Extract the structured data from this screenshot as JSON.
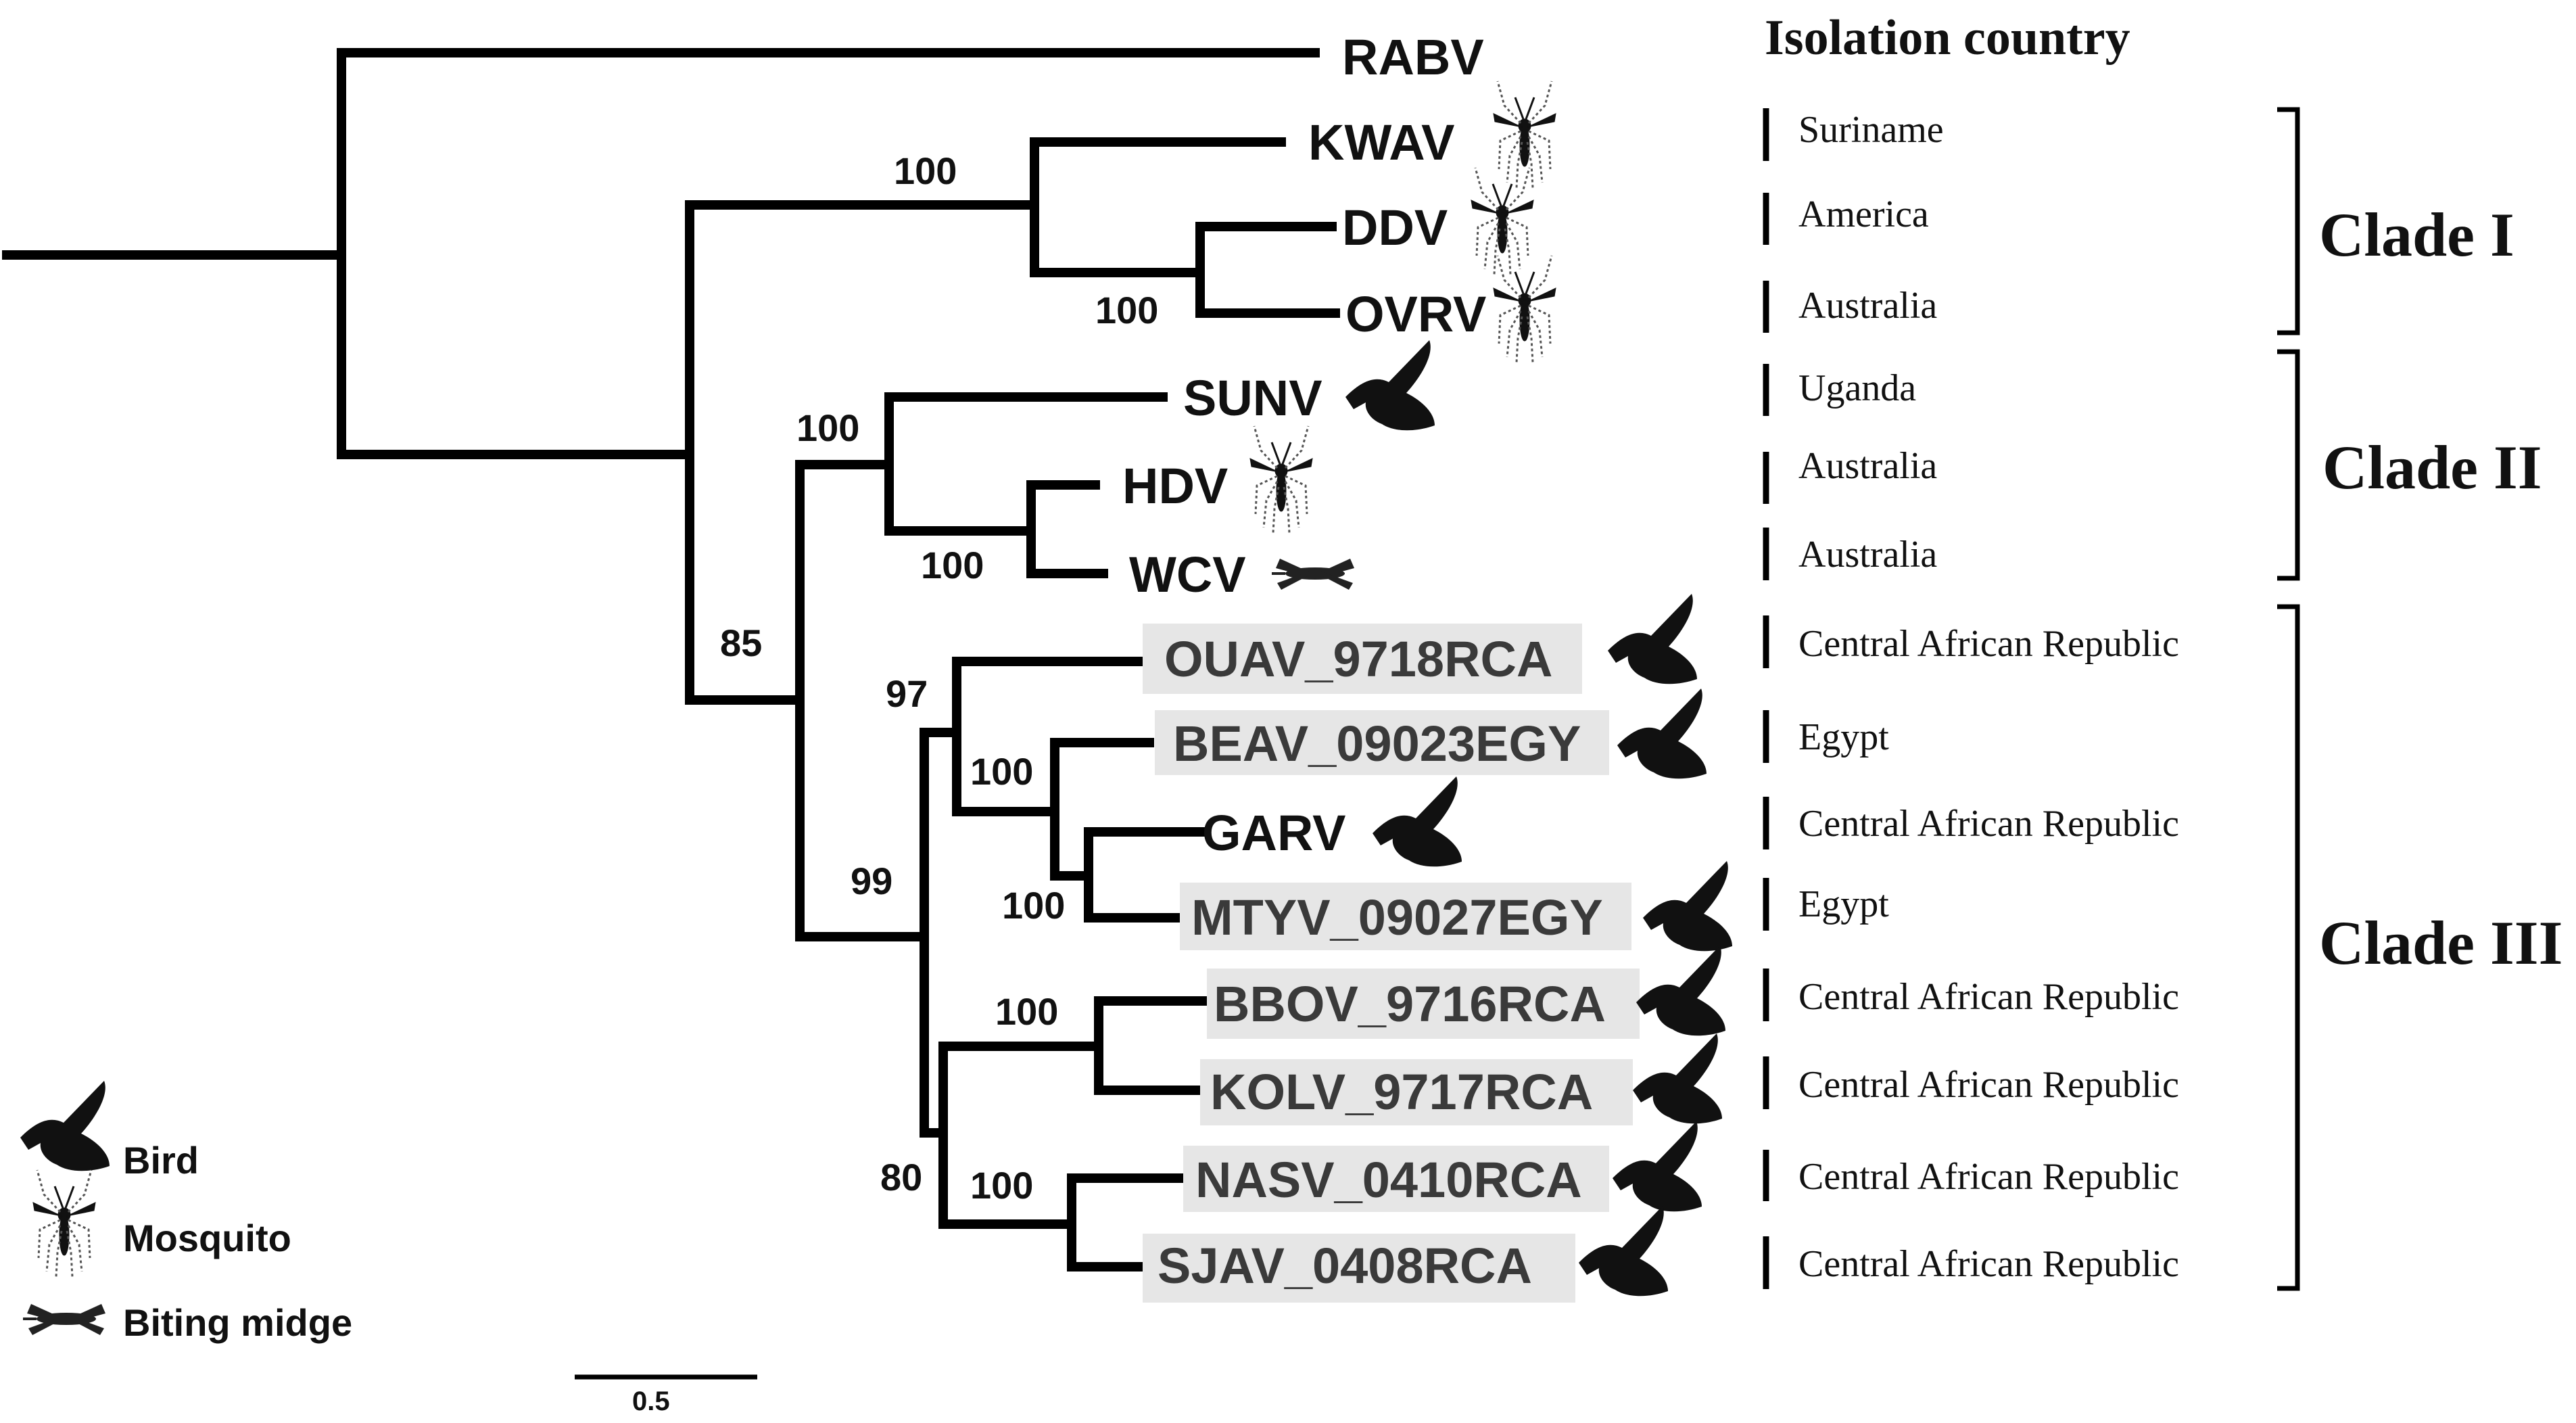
{
  "figure": {
    "country_header": "Isolation country",
    "scale_label": "0.5",
    "legend": {
      "bird": "Bird",
      "mosquito": "Mosquito",
      "midge": "Biting midge"
    },
    "clades": [
      "Clade I",
      "Clade II",
      "Clade III"
    ],
    "taxa": [
      {
        "name": "RABV",
        "host": "",
        "country": ""
      },
      {
        "name": "KWAV",
        "host": "mosquito",
        "country": "Suriname"
      },
      {
        "name": "DDV",
        "host": "mosquito",
        "country": "America"
      },
      {
        "name": "OVRV",
        "host": "mosquito",
        "country": "Australia"
      },
      {
        "name": "SUNV",
        "host": "bird",
        "country": "Uganda"
      },
      {
        "name": "HDV",
        "host": "mosquito",
        "country": "Australia"
      },
      {
        "name": "WCV",
        "host": "midge",
        "country": "Australia"
      },
      {
        "name": "OUAV_9718RCA",
        "host": "bird",
        "country": "Central African Republic",
        "highlight": true
      },
      {
        "name": "BEAV_09023EGY",
        "host": "bird",
        "country": "Egypt",
        "highlight": true
      },
      {
        "name": "GARV",
        "host": "bird",
        "country": "Central African Republic"
      },
      {
        "name": "MTYV_09027EGY",
        "host": "bird",
        "country": "Egypt",
        "highlight": true
      },
      {
        "name": "BBOV_9716RCA",
        "host": "bird",
        "country": "Central African Republic",
        "highlight": true
      },
      {
        "name": "KOLV_9717RCA",
        "host": "bird",
        "country": "Central African Republic",
        "highlight": true
      },
      {
        "name": "NASV_0410RCA",
        "host": "bird",
        "country": "Central African Republic",
        "highlight": true
      },
      {
        "name": "SJAV_0408RCA",
        "host": "bird",
        "country": "Central African Republic",
        "highlight": true
      }
    ],
    "bootstrap": [
      "100",
      "100",
      "100",
      "100",
      "85",
      "97",
      "100",
      "100",
      "99",
      "100",
      "100",
      "80"
    ]
  }
}
